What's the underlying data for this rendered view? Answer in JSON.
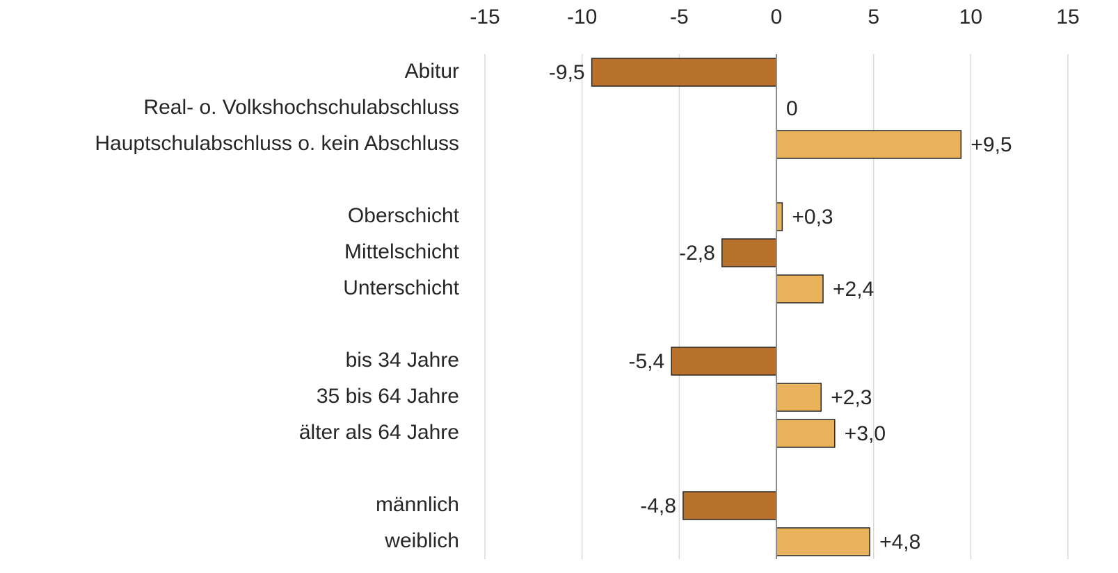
{
  "chart_data": {
    "type": "hbar",
    "categories": [
      "Abitur",
      "Real- o. Volkshochschulabschluss",
      "Hauptschulabschluss o. kein Abschluss",
      null,
      "Oberschicht",
      "Mittelschicht",
      "Unterschicht",
      null,
      "bis 34 Jahre",
      "35 bis 64 Jahre",
      "älter als 64 Jahre",
      null,
      "männlich",
      "weiblich"
    ],
    "values": [
      -9.5,
      0,
      9.5,
      null,
      0.3,
      -2.8,
      2.4,
      null,
      -5.4,
      2.3,
      3.0,
      null,
      -4.8,
      4.8
    ],
    "value_labels": [
      "-9,5",
      "0",
      "+9,5",
      null,
      "+0,3",
      "-2,8",
      "+2,4",
      null,
      "-5,4",
      "+2,3",
      "+3,0",
      null,
      "-4,8",
      "+4,8"
    ],
    "colors": [
      "#b8722c",
      "#ebb25c",
      "#ebb25c",
      null,
      "#ebb25c",
      "#b8722c",
      "#ebb25c",
      null,
      "#b8722c",
      "#ebb25c",
      "#ebb25c",
      null,
      "#b8722c",
      "#ebb25c"
    ],
    "xlim": [
      -15,
      15
    ],
    "xticks": [
      -15,
      -10,
      -5,
      0,
      5,
      10,
      15
    ],
    "grid": true
  }
}
